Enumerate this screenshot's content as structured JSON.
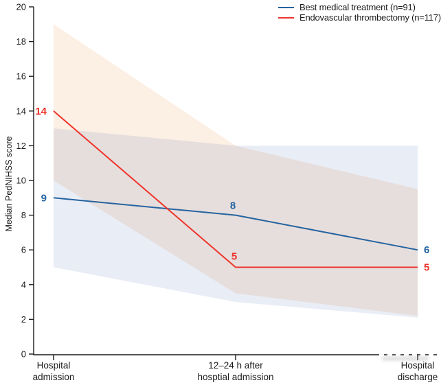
{
  "chart_data": {
    "type": "line",
    "title": "",
    "ylabel": "Median PedNIHSS score",
    "ylim": [
      0,
      20
    ],
    "ytick_step": 2,
    "grid": false,
    "legend_position": "top-right",
    "categories": [
      [
        "Hospital",
        "admission"
      ],
      [
        "12–24 h after",
        "hosptial admission"
      ],
      [
        "Hospital",
        "discharge"
      ]
    ],
    "series": [
      {
        "name": "Best medical treatment (n=91)",
        "color": "#2563a0",
        "values": [
          9,
          8,
          6
        ],
        "band_upper": [
          13,
          12,
          12
        ],
        "band_lower": [
          5,
          3,
          2.1
        ],
        "band_fill": "#e9edf6"
      },
      {
        "name": "Endovascular thrombectomy (n=117)",
        "color": "#ed342b",
        "values": [
          14,
          5,
          5
        ],
        "band_upper": [
          19,
          12,
          9.5
        ],
        "band_lower": [
          10,
          3.5,
          2.2
        ],
        "band_fill": "#fcefe4"
      }
    ]
  }
}
